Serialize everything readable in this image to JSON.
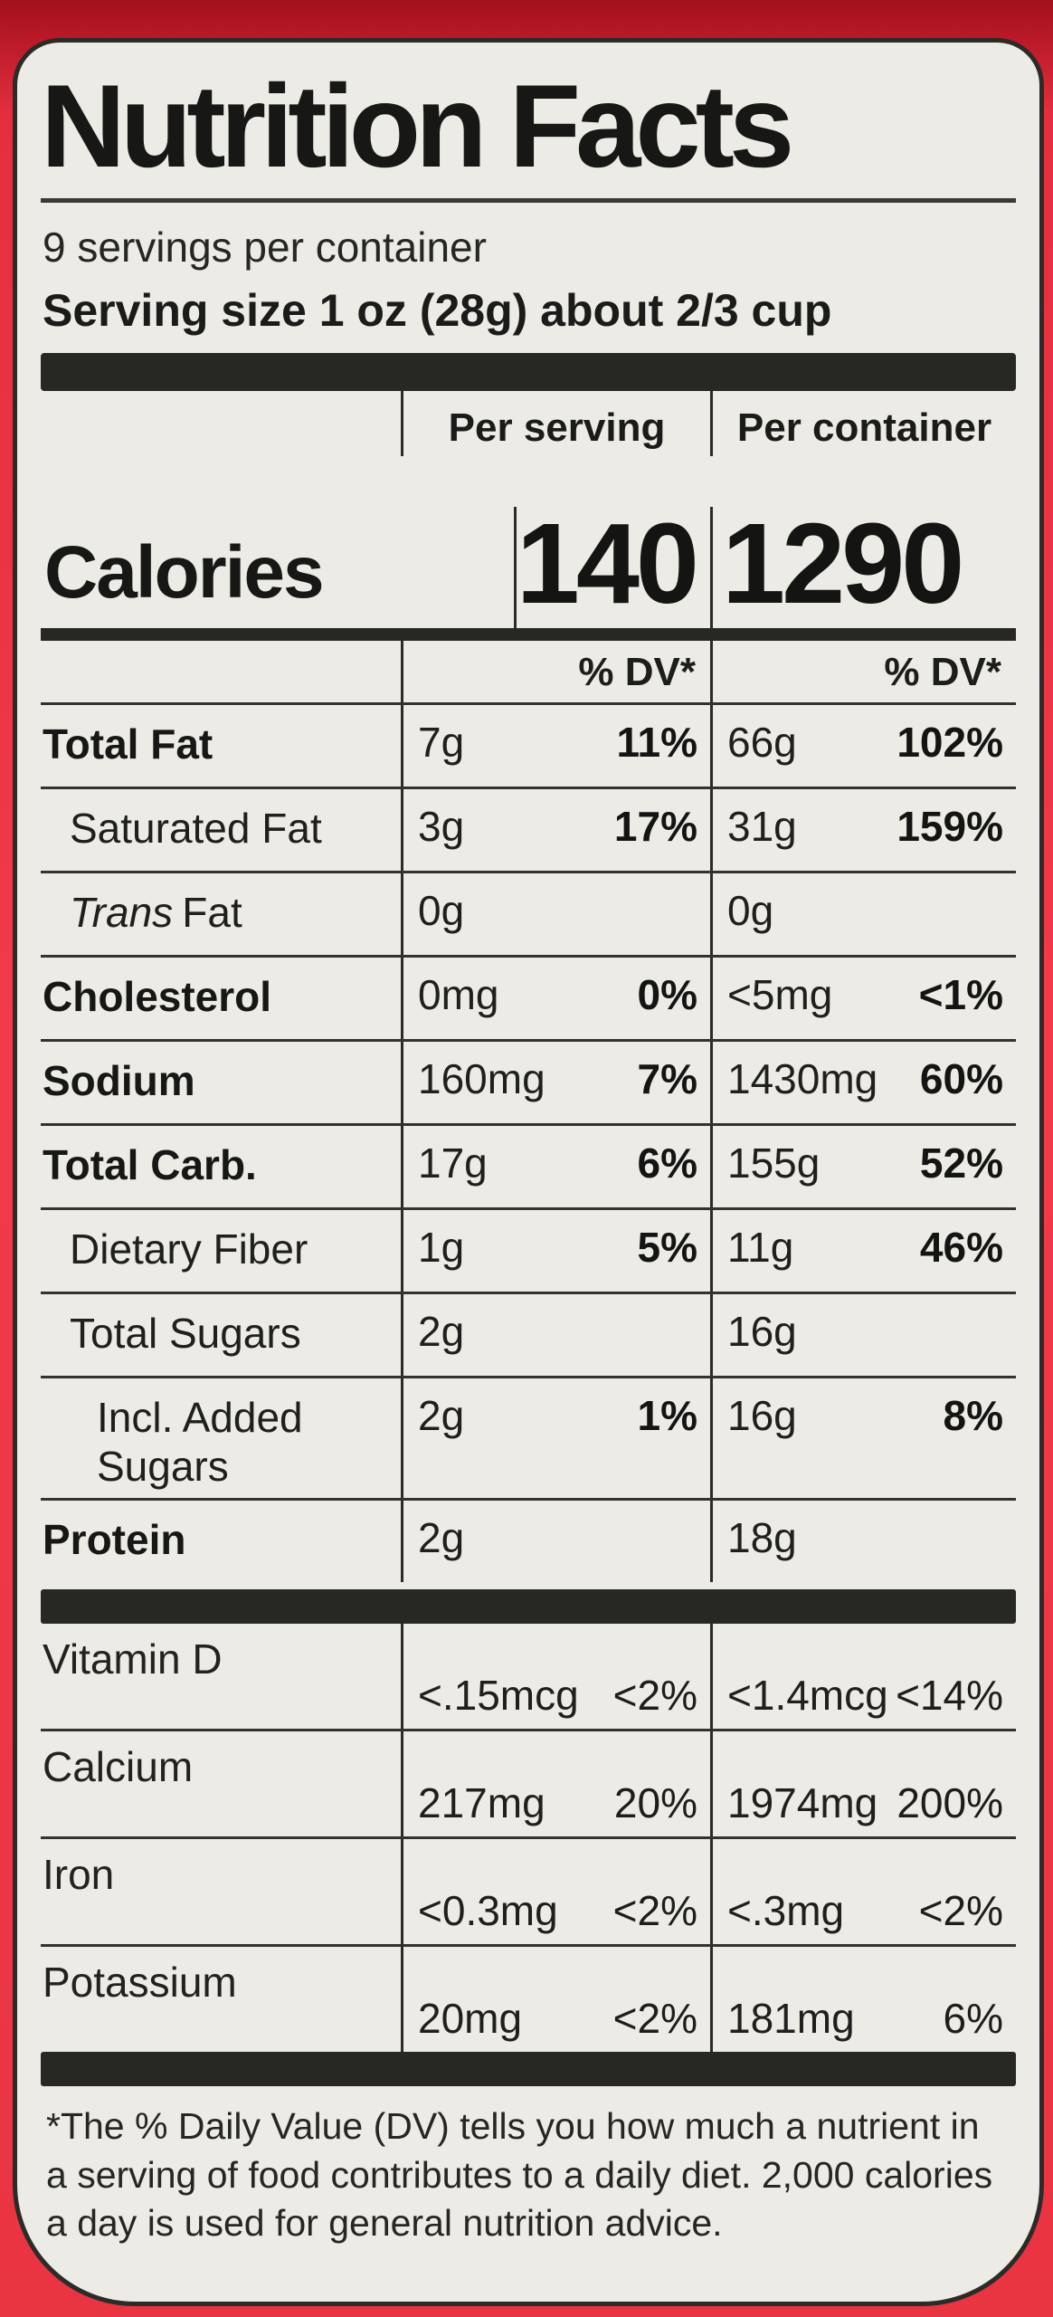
{
  "colors": {
    "can_red": "#ee3545",
    "label_background": "#edebe6",
    "ink": "#1d1d1b"
  },
  "header": {
    "title": "Nutrition Facts",
    "servings_per_container": "9 servings per container",
    "serving_size_line": "Serving size 1 oz (28g) about 2/3 cup"
  },
  "calories": {
    "label": "Calories",
    "per_serving_header": "Per serving",
    "per_container_header": "Per container",
    "per_serving_value": "140",
    "per_container_value": "1290"
  },
  "dv_header": {
    "per_serving": "% DV*",
    "per_container": "% DV*"
  },
  "nutrients": [
    {
      "name": "Total Fat",
      "ps_amt": "7g",
      "ps_dv": "11%",
      "pc_amt": "66g",
      "pc_dv": "102%"
    },
    {
      "name": "Saturated Fat",
      "ps_amt": "3g",
      "ps_dv": "17%",
      "pc_amt": "31g",
      "pc_dv": "159%"
    },
    {
      "name_prefix": "Trans",
      "name_rest": "Fat",
      "ps_amt": "0g",
      "ps_dv": "",
      "pc_amt": "0g",
      "pc_dv": ""
    },
    {
      "name": "Cholesterol",
      "ps_amt": "0mg",
      "ps_dv": "0%",
      "pc_amt": "<5mg",
      "pc_dv": "<1%"
    },
    {
      "name": "Sodium",
      "ps_amt": "160mg",
      "ps_dv": "7%",
      "pc_amt": "1430mg",
      "pc_dv": "60%"
    },
    {
      "name": "Total Carb.",
      "ps_amt": "17g",
      "ps_dv": "6%",
      "pc_amt": "155g",
      "pc_dv": "52%"
    },
    {
      "name": "Dietary Fiber",
      "ps_amt": "1g",
      "ps_dv": "5%",
      "pc_amt": "11g",
      "pc_dv": "46%"
    },
    {
      "name": "Total Sugars",
      "ps_amt": "2g",
      "ps_dv": "",
      "pc_amt": "16g",
      "pc_dv": ""
    },
    {
      "name": "Incl. Added Sugars",
      "ps_amt": "2g",
      "ps_dv": "1%",
      "pc_amt": "16g",
      "pc_dv": "8%"
    },
    {
      "name": "Protein",
      "ps_amt": "2g",
      "ps_dv": "",
      "pc_amt": "18g",
      "pc_dv": ""
    }
  ],
  "vitamins": [
    {
      "name": "Vitamin D",
      "ps_amt": "<.15mcg",
      "ps_dv": "<2%",
      "pc_amt": "<1.4mcg",
      "pc_dv": "<14%"
    },
    {
      "name": "Calcium",
      "ps_amt": "217mg",
      "ps_dv": "20%",
      "pc_amt": "1974mg",
      "pc_dv": "200%"
    },
    {
      "name": "Iron",
      "ps_amt": "<0.3mg",
      "ps_dv": "<2%",
      "pc_amt": "<.3mg",
      "pc_dv": "<2%"
    },
    {
      "name": "Potassium",
      "ps_amt": "20mg",
      "ps_dv": "<2%",
      "pc_amt": "181mg",
      "pc_dv": "6%"
    }
  ],
  "footnote": "*The % Daily Value (DV) tells you how much a nutrient in a serving of food contributes to a daily diet. 2,000 calories a day is used for general nutrition advice."
}
